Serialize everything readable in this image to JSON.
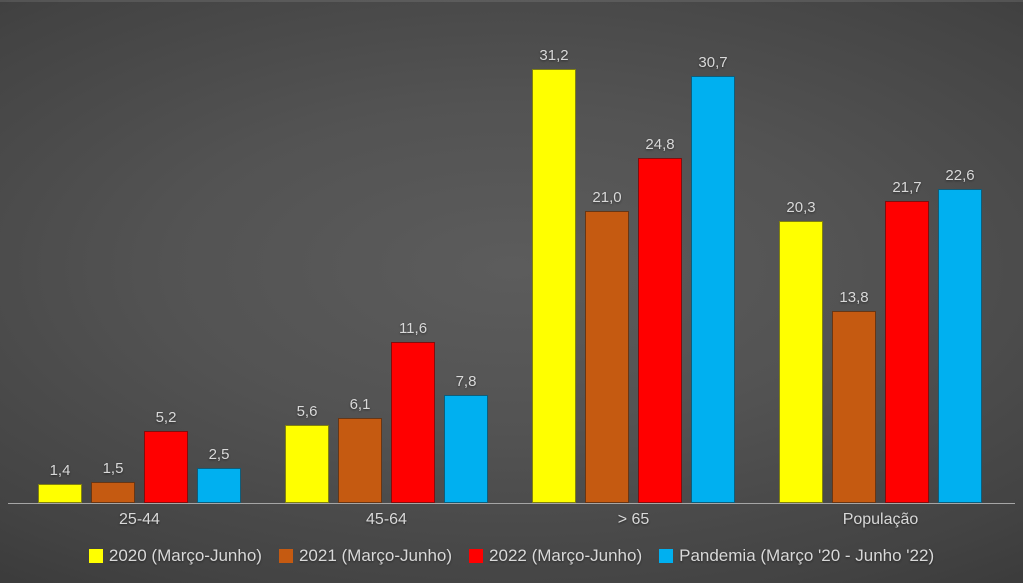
{
  "chart_data": {
    "type": "bar",
    "title": "",
    "xlabel": "",
    "ylabel": "",
    "categories": [
      "25-44",
      "45-64",
      "> 65",
      "População"
    ],
    "series": [
      {
        "name": "2020 (Março-Junho)",
        "color": "#FFFF00",
        "values": [
          1.4,
          5.6,
          31.2,
          20.3
        ]
      },
      {
        "name": "2021 (Março-Junho)",
        "color": "#C55A11",
        "values": [
          1.5,
          6.1,
          21.0,
          13.8
        ]
      },
      {
        "name": "2022 (Março-Junho)",
        "color": "#FF0000",
        "values": [
          5.2,
          11.6,
          24.8,
          21.7
        ]
      },
      {
        "name": "Pandemia (Março '20 - Junho '22)",
        "color": "#00B0F0",
        "values": [
          2.5,
          7.8,
          30.7,
          22.6
        ]
      }
    ],
    "ylim": [
      0,
      32
    ],
    "grid": false,
    "legend_position": "bottom",
    "value_labels": true,
    "decimal_separator": ","
  },
  "colors": {
    "background_center": "#5c5c5c",
    "background_edge": "#242424",
    "text": "#d9d9d9",
    "axis_line": "#a6a6a6"
  }
}
